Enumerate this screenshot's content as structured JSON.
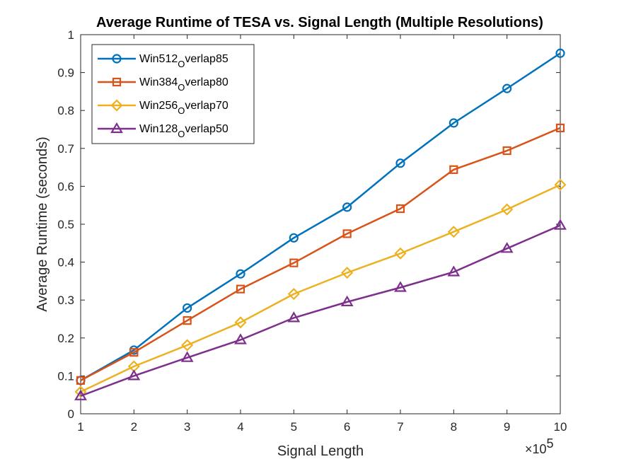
{
  "chart_data": {
    "type": "line",
    "title": "Average Runtime of TESA vs. Signal Length (Multiple Resolutions)",
    "xlabel": "Signal Length",
    "ylabel": "Average Runtime (seconds)",
    "x_exponent_base": "×10",
    "x_exponent_power": "5",
    "x": [
      1,
      2,
      3,
      4,
      5,
      6,
      7,
      8,
      9,
      10
    ],
    "xlim": [
      1,
      10
    ],
    "ylim": [
      0,
      1
    ],
    "xticks": [
      "1",
      "2",
      "3",
      "4",
      "5",
      "6",
      "7",
      "8",
      "9",
      "10"
    ],
    "yticks": [
      "0",
      "0.1",
      "0.2",
      "0.3",
      "0.4",
      "0.5",
      "0.6",
      "0.7",
      "0.8",
      "0.9",
      "1"
    ],
    "grid": false,
    "legend_position": "top-left",
    "series": [
      {
        "name_main": "Win512",
        "name_sub": "O",
        "name_rest": "verlap85",
        "color": "#0072BD",
        "marker": "circle",
        "values": [
          0.088,
          0.168,
          0.279,
          0.369,
          0.464,
          0.545,
          0.661,
          0.767,
          0.858,
          0.951
        ]
      },
      {
        "name_main": "Win384",
        "name_sub": "O",
        "name_rest": "verlap80",
        "color": "#D95319",
        "marker": "square",
        "values": [
          0.088,
          0.162,
          0.246,
          0.329,
          0.398,
          0.475,
          0.541,
          0.644,
          0.694,
          0.754
        ]
      },
      {
        "name_main": "Win256",
        "name_sub": "O",
        "name_rest": "verlap70",
        "color": "#EDB120",
        "marker": "diamond",
        "values": [
          0.058,
          0.125,
          0.181,
          0.241,
          0.316,
          0.372,
          0.423,
          0.48,
          0.539,
          0.604
        ]
      },
      {
        "name_main": "Win128",
        "name_sub": "O",
        "name_rest": "verlap50",
        "color": "#7E2F8E",
        "marker": "triangle",
        "values": [
          0.047,
          0.1,
          0.148,
          0.195,
          0.253,
          0.295,
          0.333,
          0.374,
          0.436,
          0.497
        ]
      }
    ]
  }
}
